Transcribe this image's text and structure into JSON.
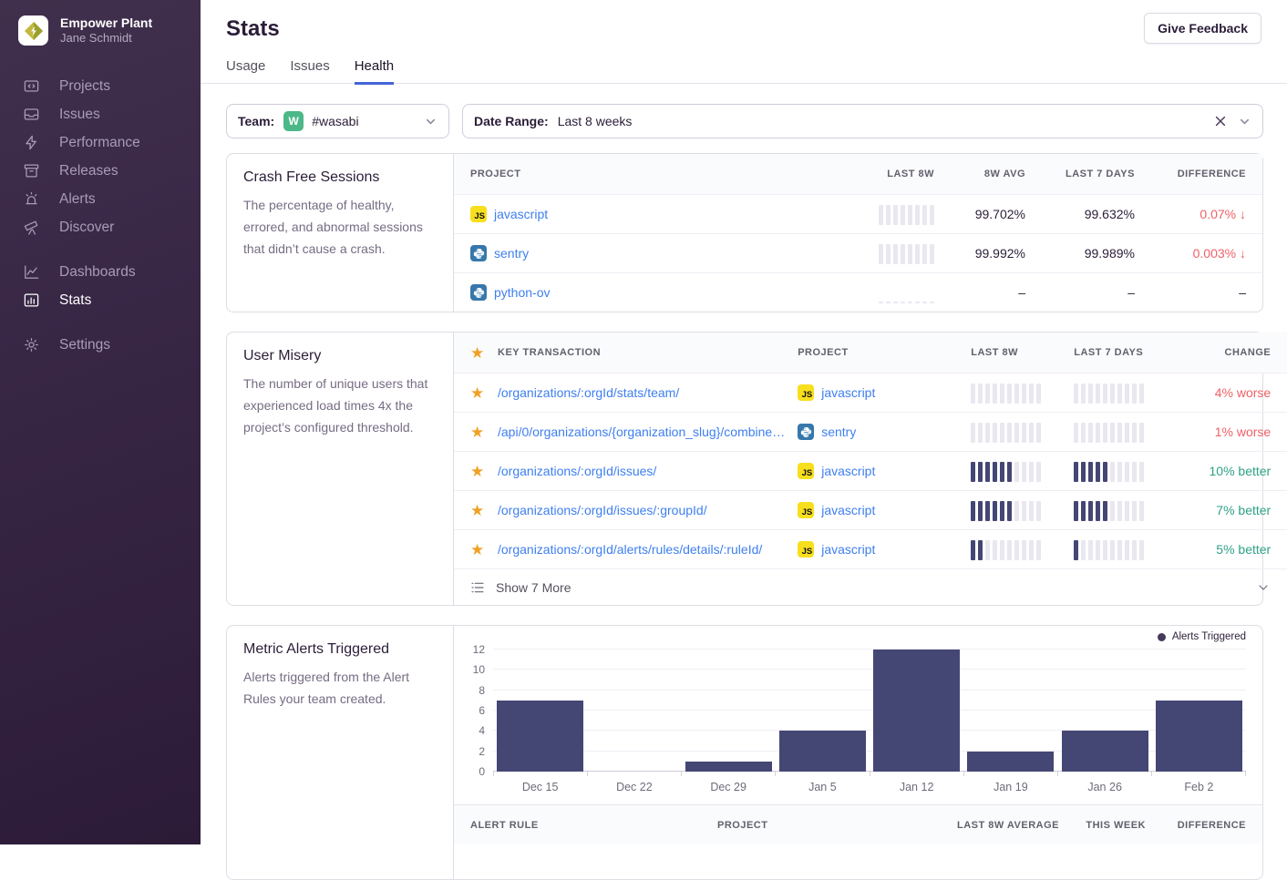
{
  "sidebar": {
    "org_name": "Empower Plant",
    "user_name": "Jane Schmidt",
    "groups": [
      {
        "items": [
          {
            "label": "Projects",
            "icon": "projects-icon"
          },
          {
            "label": "Issues",
            "icon": "issues-icon"
          },
          {
            "label": "Performance",
            "icon": "performance-icon"
          },
          {
            "label": "Releases",
            "icon": "releases-icon"
          },
          {
            "label": "Alerts",
            "icon": "alerts-icon"
          },
          {
            "label": "Discover",
            "icon": "discover-icon"
          }
        ]
      },
      {
        "items": [
          {
            "label": "Dashboards",
            "icon": "dashboards-icon"
          },
          {
            "label": "Stats",
            "icon": "stats-icon",
            "active": true
          }
        ]
      },
      {
        "items": [
          {
            "label": "Settings",
            "icon": "settings-icon"
          }
        ]
      }
    ]
  },
  "header": {
    "title": "Stats",
    "feedback_button": "Give Feedback"
  },
  "tabs": [
    {
      "label": "Usage",
      "active": false
    },
    {
      "label": "Issues",
      "active": false
    },
    {
      "label": "Health",
      "active": true
    }
  ],
  "filters": {
    "team_label": "Team:",
    "team_avatar_letter": "W",
    "team_value": "#wasabi",
    "date_range_label": "Date Range:",
    "date_range_value": "Last 8 weeks"
  },
  "crash_free": {
    "title": "Crash Free Sessions",
    "description": "The percentage of healthy, errored, and abnormal sessions that didn’t cause a crash.",
    "columns": [
      "Project",
      "Last 8w",
      "8w Avg",
      "Last 7 Days",
      "Difference"
    ],
    "rows": [
      {
        "project": "javascript",
        "platform": "javascript",
        "trend": "full",
        "avg_8w": "99.702%",
        "last_7d": "99.632%",
        "difference": "0.07%",
        "direction": "down"
      },
      {
        "project": "sentry",
        "platform": "python",
        "trend": "full",
        "avg_8w": "99.992%",
        "last_7d": "99.989%",
        "difference": "0.003%",
        "direction": "down"
      },
      {
        "project": "python-ov",
        "platform": "python",
        "trend": "empty",
        "avg_8w": "–",
        "last_7d": "–",
        "difference": "–",
        "direction": null
      }
    ]
  },
  "user_misery": {
    "title": "User Misery",
    "description": "The number of unique users that experienced load times 4x the project’s configured threshold.",
    "columns": [
      "Key Transaction",
      "Project",
      "Last 8w",
      "Last 7 Days",
      "Change"
    ],
    "segments": 10,
    "rows": [
      {
        "transaction": "/organizations/:orgId/stats/team/",
        "project": "javascript",
        "platform": "javascript",
        "last_8w_filled": 0,
        "last_7d_filled": 0,
        "change": "4% worse",
        "change_type": "worse"
      },
      {
        "transaction": "/api/0/organizations/{organization_slug}/combine…",
        "project": "sentry",
        "platform": "python",
        "last_8w_filled": 0,
        "last_7d_filled": 0,
        "change": "1% worse",
        "change_type": "worse"
      },
      {
        "transaction": "/organizations/:orgId/issues/",
        "project": "javascript",
        "platform": "javascript",
        "last_8w_filled": 6,
        "last_7d_filled": 5,
        "change": "10% better",
        "change_type": "better"
      },
      {
        "transaction": "/organizations/:orgId/issues/:groupId/",
        "project": "javascript",
        "platform": "javascript",
        "last_8w_filled": 6,
        "last_7d_filled": 5,
        "change": "7% better",
        "change_type": "better"
      },
      {
        "transaction": "/organizations/:orgId/alerts/rules/details/:ruleId/",
        "project": "javascript",
        "platform": "javascript",
        "last_8w_filled": 2,
        "last_7d_filled": 1,
        "change": "5% better",
        "change_type": "better"
      }
    ],
    "show_more_label": "Show 7 More"
  },
  "metric_alerts": {
    "title": "Metric Alerts Triggered",
    "description": "Alerts triggered from the Alert Rules your team created.",
    "table_columns": [
      "Alert Rule",
      "Project",
      "Last 8w Average",
      "This Week",
      "Difference"
    ]
  },
  "chart_data": {
    "type": "bar",
    "title": "Metric Alerts Triggered",
    "categories": [
      "Dec 15",
      "Dec 22",
      "Dec 29",
      "Jan 5",
      "Jan 12",
      "Jan 19",
      "Jan 26",
      "Feb 2"
    ],
    "values": [
      7,
      0,
      1,
      4,
      12,
      2,
      4,
      7
    ],
    "yticks": [
      0,
      2,
      4,
      6,
      8,
      10,
      12
    ],
    "ylim": [
      0,
      12
    ],
    "xlabel": "",
    "ylabel": "",
    "grid": true,
    "legend": [
      {
        "label": "Alerts Triggered",
        "color": "#453a5c"
      }
    ],
    "legend_position": "top-right"
  },
  "colors": {
    "link_blue": "#3e7ff0",
    "negative_red": "#ef6066",
    "positive_green": "#2fa185",
    "chart_bar": "#444674",
    "muted_bar": "#e9e7ef",
    "star_gold": "#f0a125",
    "team_avatar_green": "#4cb889",
    "js_badge_yellow": "#f7df1e",
    "python_badge_blue": "#3777ab",
    "tab_underline_blue": "#4465d8"
  }
}
